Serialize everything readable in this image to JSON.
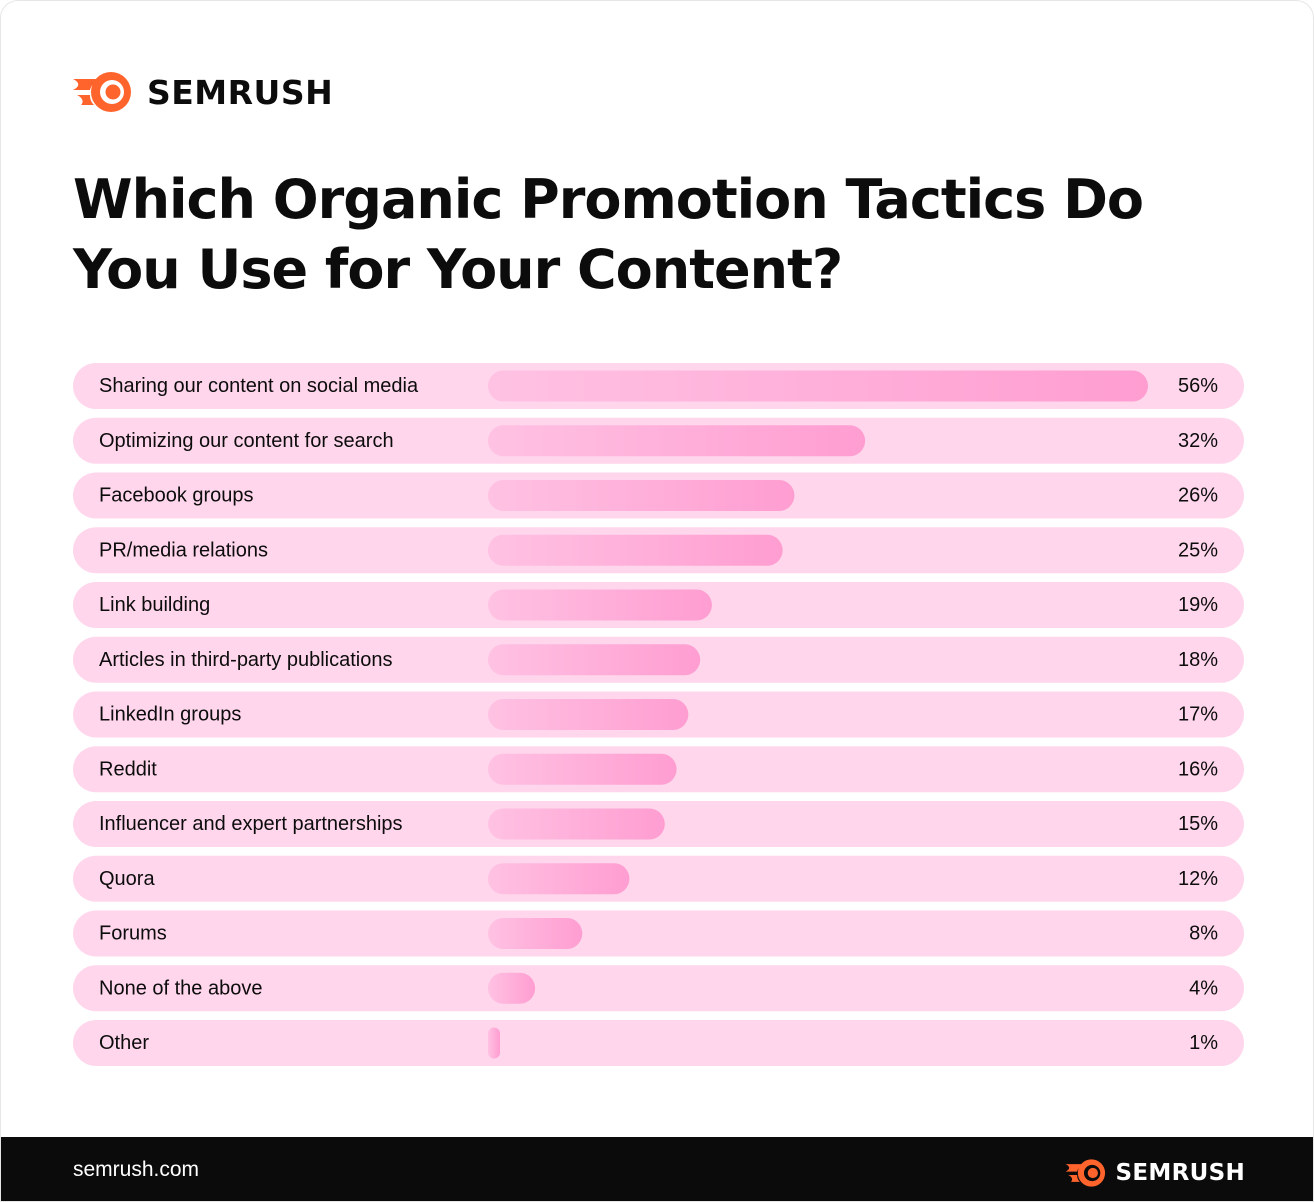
{
  "brand": {
    "name": "SEMRUSH",
    "logo_icon": "semrush-fireball-icon",
    "logo_color": "#ff642d"
  },
  "footer": {
    "site": "semrush.com",
    "brand_name": "SEMRUSH"
  },
  "colors": {
    "row_background": "#ffd6ec",
    "bar_light": "#ffc0e2",
    "bar_dark": "#ff9fd2",
    "text": "#0c0c0c",
    "footer_background": "#0b0b0b"
  },
  "chart_data": {
    "type": "bar",
    "orientation": "horizontal",
    "title": "Which Organic Promotion Tactics Do You Use for Your Content?",
    "categories": [
      "Sharing our content on social media",
      "Optimizing our content for search",
      "Facebook groups",
      "PR/media relations",
      "Link building",
      "Articles in third-party publications",
      "LinkedIn groups",
      "Reddit",
      "Influencer and expert partnerships",
      "Quora",
      "Forums",
      "None of the above",
      "Other"
    ],
    "values": [
      56,
      32,
      26,
      25,
      19,
      18,
      17,
      16,
      15,
      12,
      8,
      4,
      1
    ],
    "value_labels": [
      "56%",
      "32%",
      "26%",
      "25%",
      "19%",
      "18%",
      "17%",
      "16%",
      "15%",
      "12%",
      "8%",
      "4%",
      "1%"
    ],
    "unit": "%",
    "xlabel": "",
    "ylabel": "",
    "grid": false,
    "legend": "none"
  }
}
